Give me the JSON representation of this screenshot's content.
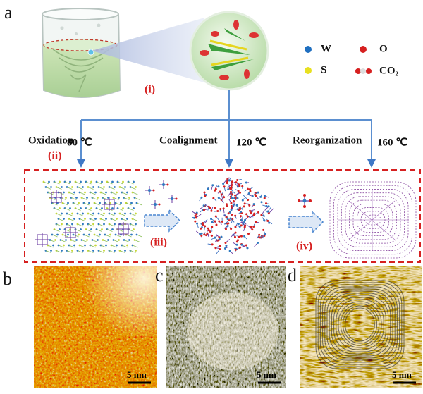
{
  "panel_labels": {
    "a": "a",
    "b": "b",
    "c": "c",
    "d": "d"
  },
  "step_i": "(i)",
  "legend": [
    {
      "label": "W"
    },
    {
      "label": "O"
    },
    {
      "label": "S"
    },
    {
      "label": "CO₂"
    }
  ],
  "stages": [
    {
      "name": "Oxidation",
      "temperature": "80 ℃",
      "step": "(ii)"
    },
    {
      "name": "Coalignment",
      "temperature": "120 ℃",
      "step": "(iii)"
    },
    {
      "name": "Reorganization",
      "temperature": "160 ℃",
      "step": "(iv)"
    }
  ],
  "scale_bars": [
    "5 nm",
    "5 nm",
    "5 nm"
  ]
}
